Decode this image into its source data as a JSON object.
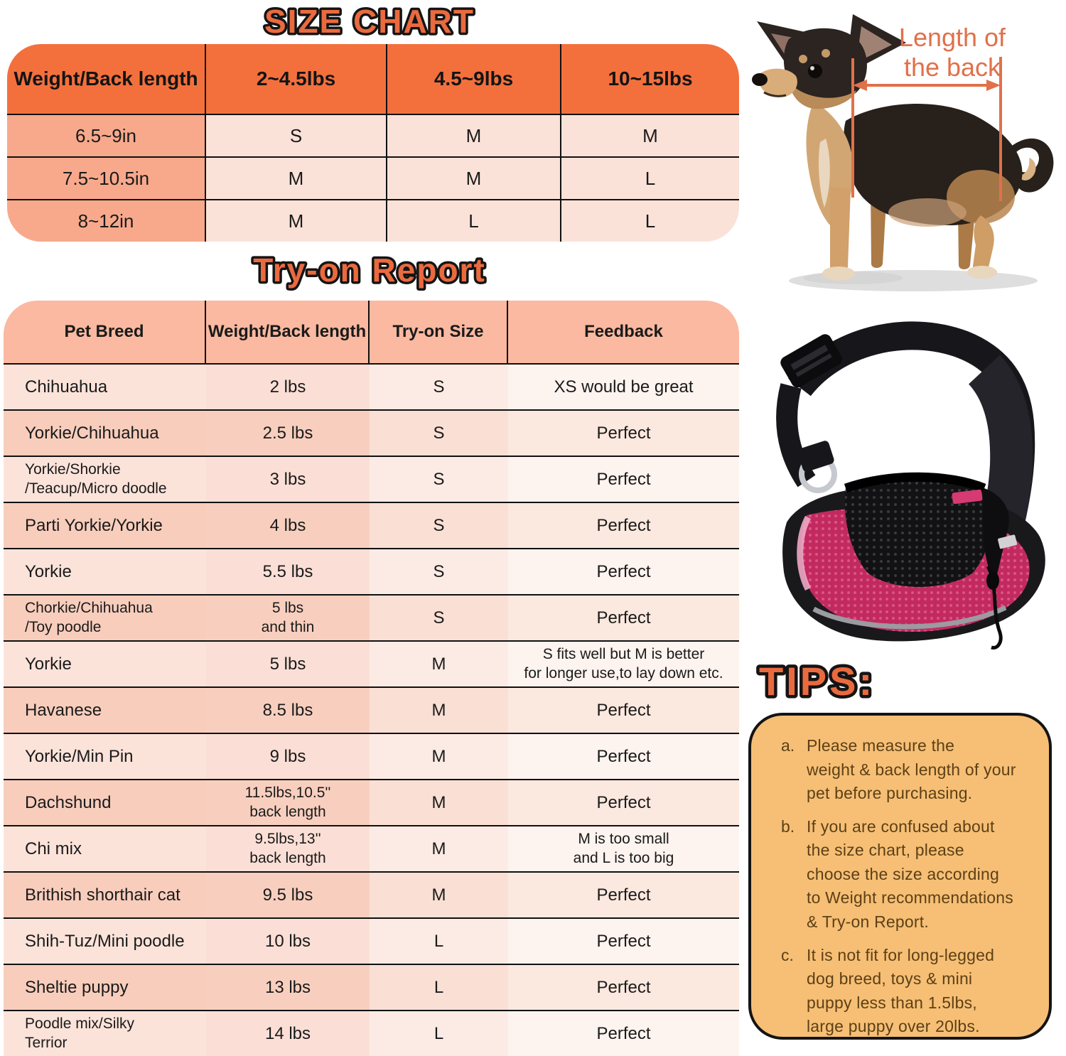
{
  "size_chart": {
    "title": "SIZE CHART",
    "header": [
      "Weight/Back length",
      "2~4.5lbs",
      "4.5~9lbs",
      "10~15lbs"
    ],
    "rows": [
      {
        "label": "6.5~9in",
        "values": [
          "S",
          "M",
          "M"
        ]
      },
      {
        "label": "7.5~10.5in",
        "values": [
          "M",
          "M",
          "L"
        ]
      },
      {
        "label": "8~12in",
        "values": [
          "M",
          "L",
          "L"
        ]
      }
    ]
  },
  "dog_diagram": {
    "caption_line1": "Length of",
    "caption_line2": "the back"
  },
  "tryon_report": {
    "title": "Try-on Report",
    "header": [
      "Pet Breed",
      "Weight/Back length",
      "Try-on Size",
      "Feedback"
    ],
    "rows": [
      {
        "breed": "Chihuahua",
        "weight": "2 lbs",
        "size": "S",
        "feedback": "XS would be great"
      },
      {
        "breed": "Yorkie/Chihuahua",
        "weight": "2.5 lbs",
        "size": "S",
        "feedback": "Perfect"
      },
      {
        "breed": "Yorkie/Shorkie\n/Teacup/Micro doodle",
        "weight": "3 lbs",
        "size": "S",
        "feedback": "Perfect"
      },
      {
        "breed": "Parti Yorkie/Yorkie",
        "weight": "4 lbs",
        "size": "S",
        "feedback": "Perfect"
      },
      {
        "breed": "Yorkie",
        "weight": "5.5 lbs",
        "size": "S",
        "feedback": "Perfect"
      },
      {
        "breed": "Chorkie/Chihuahua\n/Toy poodle",
        "weight": "5 lbs\nand thin",
        "size": "S",
        "feedback": "Perfect"
      },
      {
        "breed": "Yorkie",
        "weight": "5 lbs",
        "size": "M",
        "feedback": "S fits well but M is better\nfor longer use,to lay down etc."
      },
      {
        "breed": "Havanese",
        "weight": "8.5 lbs",
        "size": "M",
        "feedback": "Perfect"
      },
      {
        "breed": "Yorkie/Min Pin",
        "weight": "9 lbs",
        "size": "M",
        "feedback": "Perfect"
      },
      {
        "breed": "Dachshund",
        "weight": "11.5lbs,10.5''\nback length",
        "size": "M",
        "feedback": "Perfect"
      },
      {
        "breed": "Chi mix",
        "weight": "9.5lbs,13''\nback length",
        "size": "M",
        "feedback": "M is too small\nand L is too big"
      },
      {
        "breed": "Brithish shorthair cat",
        "weight": "9.5 lbs",
        "size": "M",
        "feedback": "Perfect"
      },
      {
        "breed": "Shih-Tuz/Mini poodle",
        "weight": "10 lbs",
        "size": "L",
        "feedback": "Perfect"
      },
      {
        "breed": "Sheltie puppy",
        "weight": "13 lbs",
        "size": "L",
        "feedback": "Perfect"
      },
      {
        "breed": "Poodle mix/Silky\nTerrior",
        "weight": "14 lbs",
        "size": "L",
        "feedback": "Perfect"
      }
    ]
  },
  "tips": {
    "title": "TIPS:",
    "items": [
      {
        "label": "a.",
        "text": "Please measure the\nweight & back length of your\npet before purchasing."
      },
      {
        "label": "b.",
        "text": "If you are confused about\nthe size chart, please\nchoose the size according\nto Weight recommendations\n& Try-on Report."
      },
      {
        "label": "c.",
        "text": "It is not fit for long-legged\ndog breed, toys & mini\npuppy less than 1.5lbs,\nlarge puppy over 20lbs."
      }
    ]
  },
  "colors": {
    "title_orange": "#ea6a3f",
    "size_header_bg": "#f3703d",
    "size_label_col_bg": "#f8a98c",
    "size_value_bg": "#fbe2d9",
    "tryon_header_bg": "#fab9a0",
    "tips_box_bg": "#f6bf75",
    "measure_orange": "#e0714a",
    "bag_pink": "#c22a5f",
    "grid_line": "#101010"
  }
}
